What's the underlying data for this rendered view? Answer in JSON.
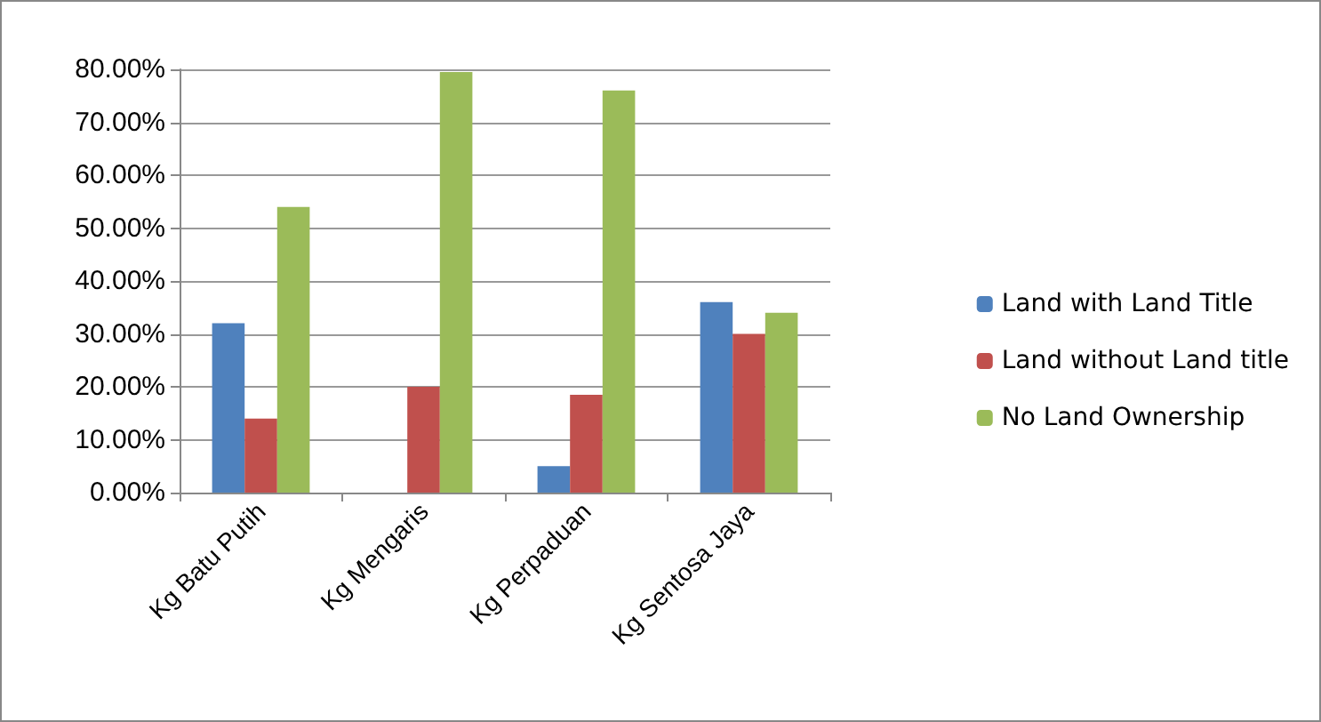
{
  "chart_data": {
    "type": "bar",
    "categories": [
      "Kg Batu Putih",
      "Kg Mengaris",
      "Kg Perpaduan",
      "Kg Sentosa Jaya"
    ],
    "series": [
      {
        "name": "Land with Land Title",
        "color": "#4f81bd",
        "values": [
          32,
          0,
          5,
          36
        ]
      },
      {
        "name": "Land without Land title",
        "color": "#c0504d",
        "values": [
          14,
          20,
          18.5,
          30
        ]
      },
      {
        "name": "No Land Ownership",
        "color": "#9bbb59",
        "values": [
          54,
          79.5,
          76,
          34
        ]
      }
    ],
    "ylim": [
      0,
      80
    ],
    "yticks": [
      {
        "value": 0,
        "label": "0.00%"
      },
      {
        "value": 10,
        "label": "10.00%"
      },
      {
        "value": 20,
        "label": "20.00%"
      },
      {
        "value": 30,
        "label": "30.00%"
      },
      {
        "value": 40,
        "label": "40.00%"
      },
      {
        "value": 50,
        "label": "50.00%"
      },
      {
        "value": 60,
        "label": "60.00%"
      },
      {
        "value": 70,
        "label": "70.00%"
      },
      {
        "value": 80,
        "label": "80.00%"
      }
    ],
    "grid": "y",
    "legend": "right"
  }
}
